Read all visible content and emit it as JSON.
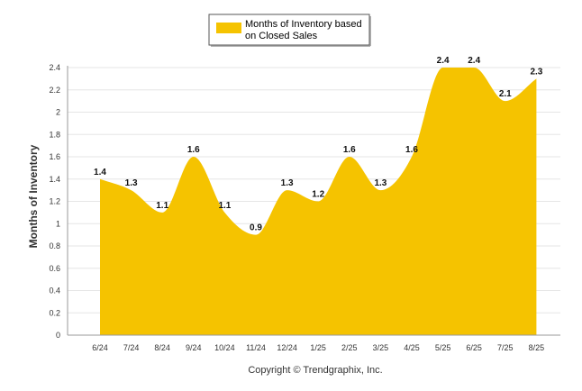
{
  "chart_data": {
    "type": "area",
    "categories": [
      "6/24",
      "7/24",
      "8/24",
      "9/24",
      "10/24",
      "11/24",
      "12/24",
      "1/25",
      "2/25",
      "3/25",
      "4/25",
      "5/25",
      "6/25",
      "7/25",
      "8/25"
    ],
    "series": [
      {
        "name": "Months of Inventory based on Closed Sales",
        "values": [
          1.4,
          1.3,
          1.1,
          1.6,
          1.1,
          0.9,
          1.3,
          1.2,
          1.6,
          1.3,
          1.6,
          2.4,
          2.4,
          2.1,
          2.3
        ],
        "color": "#F5C300"
      }
    ],
    "ylabel": "Months of Inventory",
    "xlabel": "",
    "ylim": [
      0,
      2.4
    ],
    "yticks": [
      "0",
      "0.2",
      "0.4",
      "0.6",
      "0.8",
      "1",
      "1.2",
      "1.4",
      "1.6",
      "1.8",
      "2",
      "2.2",
      "2.4"
    ],
    "grid": true,
    "legend_position": "top-center"
  },
  "legend": {
    "lines": [
      "Months of Inventory based",
      "on Closed Sales"
    ]
  },
  "footer": {
    "copyright": "Copyright © Trendgraphix, Inc."
  },
  "colors": {
    "fill": "#F5C300",
    "grid": "#e6e6e6",
    "axis": "#999999"
  }
}
